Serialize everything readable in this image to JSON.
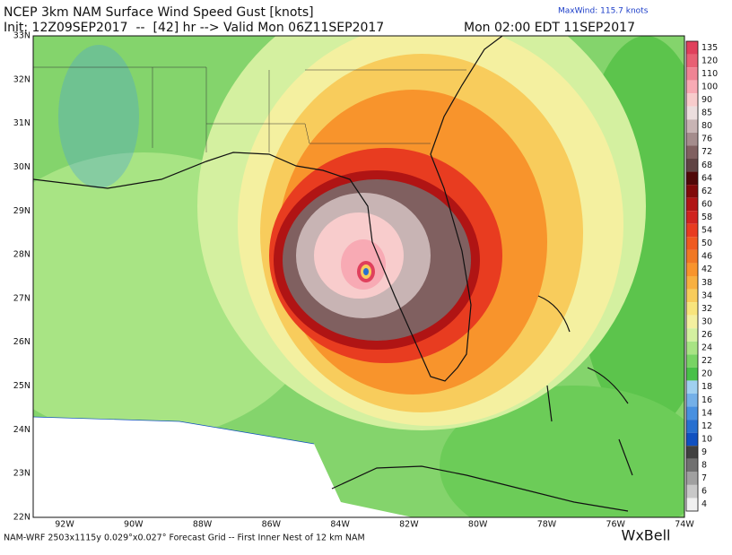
{
  "header": {
    "title": "NCEP 3km NAM Surface Wind Speed Gust [knots]",
    "init": "Init: 12Z09SEP2017  --  [42] hr --> Valid Mon 06Z11SEP2017",
    "local_time": "Mon 02:00 EDT 11SEP2017",
    "max_wind": "MaxWind: 115.7 knots"
  },
  "map": {
    "lat_labels": [
      "33N",
      "32N",
      "31N",
      "30N",
      "29N",
      "28N",
      "27N",
      "26N",
      "25N",
      "24N",
      "23N",
      "22N"
    ],
    "lon_labels": [
      "92W",
      "90W",
      "88W",
      "86W",
      "84W",
      "82W",
      "80W",
      "78W",
      "76W",
      "74W"
    ]
  },
  "colorbar": {
    "levels": [
      135,
      120,
      110,
      100,
      90,
      85,
      80,
      76,
      72,
      68,
      64,
      62,
      60,
      58,
      54,
      50,
      46,
      42,
      38,
      34,
      32,
      30,
      26,
      24,
      22,
      20,
      18,
      16,
      14,
      12,
      10,
      9,
      8,
      7,
      6,
      4
    ],
    "colors": [
      "#e0405c",
      "#e86074",
      "#f08494",
      "#f8aab4",
      "#f8cccc",
      "#ecdede",
      "#c8b4b4",
      "#a48c8c",
      "#806060",
      "#604444",
      "#500808",
      "#800a0a",
      "#b01414",
      "#d02420",
      "#e83c20",
      "#f05a20",
      "#f07824",
      "#f8942c",
      "#f8b040",
      "#f8cc5c",
      "#f8e47c",
      "#f4f0a0",
      "#d4f0a0",
      "#a8e484",
      "#78d464",
      "#48c048",
      "#a0d0f0",
      "#74b0e8",
      "#4890e0",
      "#2870d0",
      "#1050c0",
      "#404040",
      "#707070",
      "#a0a0a0",
      "#c8c8c8",
      "#f0f0f0"
    ]
  },
  "footer": "NAM-WRF 2503x1115y 0.029°x0.027° Forecast Grid -- First Inner Nest of 12 km NAM",
  "logo": "WxBell"
}
